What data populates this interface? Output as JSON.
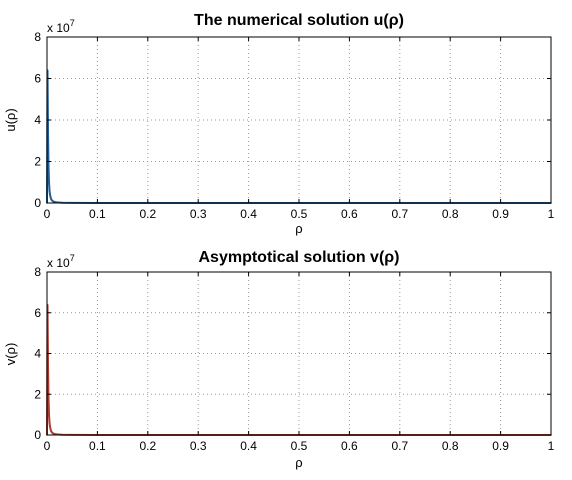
{
  "chart_data": [
    {
      "type": "line",
      "title": "The numerical solution u(ρ)",
      "xlabel": "ρ",
      "ylabel": "u(ρ)",
      "y_exponent_label": "x 10",
      "y_exponent_power": "7",
      "xlim": [
        0,
        1
      ],
      "ylim": [
        0,
        8
      ],
      "grid": true,
      "xticks": [
        "0",
        "0.1",
        "0.2",
        "0.3",
        "0.4",
        "0.5",
        "0.6",
        "0.7",
        "0.8",
        "0.9",
        "1"
      ],
      "yticks": [
        "0",
        "2",
        "4",
        "6",
        "8"
      ],
      "series": [
        {
          "color": "#1f5f96",
          "x": [
            0,
            0.001,
            0.002,
            0.003,
            0.004,
            0.005,
            0.006,
            0.008,
            0.01,
            0.012,
            0.015,
            0.02,
            0.03,
            0.05,
            0.1,
            0.2,
            0.5,
            1.0
          ],
          "y": [
            0,
            6.4,
            3.5,
            1.8,
            1.0,
            0.6,
            0.4,
            0.2,
            0.12,
            0.08,
            0.05,
            0.03,
            0.015,
            0.005,
            0.002,
            0.001,
            0.0005,
            0.0002
          ]
        }
      ]
    },
    {
      "type": "line",
      "title": "Asymptotical solution v(ρ)",
      "xlabel": "ρ",
      "ylabel": "v(ρ)",
      "y_exponent_label": "x 10",
      "y_exponent_power": "7",
      "xlim": [
        0,
        1
      ],
      "ylim": [
        0,
        8
      ],
      "grid": true,
      "xticks": [
        "0",
        "0.1",
        "0.2",
        "0.3",
        "0.4",
        "0.5",
        "0.6",
        "0.7",
        "0.8",
        "0.9",
        "1"
      ],
      "yticks": [
        "0",
        "2",
        "4",
        "6",
        "8"
      ],
      "series": [
        {
          "color": "#b03a2e",
          "x": [
            0,
            0.001,
            0.002,
            0.003,
            0.004,
            0.005,
            0.006,
            0.008,
            0.01,
            0.012,
            0.015,
            0.02,
            0.03,
            0.05,
            0.1,
            0.2,
            0.5,
            1.0
          ],
          "y": [
            0,
            6.4,
            3.5,
            1.8,
            1.0,
            0.6,
            0.4,
            0.2,
            0.12,
            0.08,
            0.05,
            0.03,
            0.015,
            0.005,
            0.002,
            0.001,
            0.0005,
            0.0002
          ]
        }
      ]
    }
  ]
}
